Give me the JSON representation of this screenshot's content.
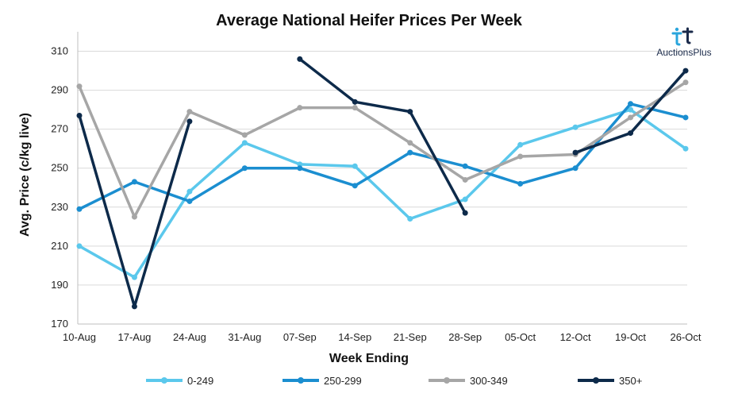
{
  "chart_data": {
    "type": "line",
    "title": "Average National Heifer Prices Per Week",
    "xlabel": "Week Ending",
    "ylabel": "Avg. Price (c/kg live)",
    "ylim": [
      170,
      320
    ],
    "yticks": [
      170,
      190,
      210,
      230,
      250,
      270,
      290,
      310
    ],
    "categories": [
      "10-Aug",
      "17-Aug",
      "24-Aug",
      "31-Aug",
      "07-Sep",
      "14-Sep",
      "21-Sep",
      "28-Sep",
      "05-Oct",
      "12-Oct",
      "19-Oct",
      "26-Oct"
    ],
    "grid": true,
    "legend_position": "bottom",
    "series": [
      {
        "name": "0-249",
        "color": "#5bc8ec",
        "values": [
          210,
          194,
          238,
          263,
          252,
          251,
          224,
          234,
          262,
          271,
          280,
          260
        ]
      },
      {
        "name": "250-299",
        "color": "#1b8ed0",
        "values": [
          229,
          243,
          233,
          250,
          250,
          241,
          258,
          251,
          242,
          250,
          283,
          276
        ]
      },
      {
        "name": "300-349",
        "color": "#a6a6a6",
        "values": [
          292,
          225,
          279,
          267,
          281,
          281,
          263,
          244,
          256,
          257,
          276,
          294
        ]
      },
      {
        "name": "350+",
        "color": "#0d2a4a",
        "values": [
          277,
          179,
          274,
          null,
          306,
          284,
          279,
          227,
          null,
          258,
          268,
          300
        ]
      }
    ]
  },
  "logo": {
    "text": "AuctionsPlus",
    "icon": "auctionsplus-logo-icon"
  }
}
